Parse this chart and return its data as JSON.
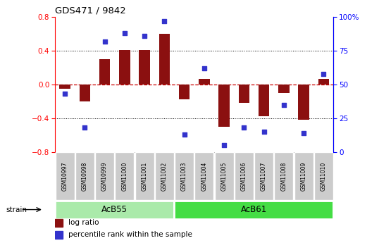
{
  "title": "GDS471 / 9842",
  "samples": [
    "GSM10997",
    "GSM10998",
    "GSM10999",
    "GSM11000",
    "GSM11001",
    "GSM11002",
    "GSM11003",
    "GSM11004",
    "GSM11005",
    "GSM11006",
    "GSM11007",
    "GSM11008",
    "GSM11009",
    "GSM11010"
  ],
  "log_ratio": [
    -0.05,
    -0.2,
    0.3,
    0.41,
    0.41,
    0.6,
    -0.18,
    0.07,
    -0.5,
    -0.22,
    -0.38,
    -0.1,
    -0.42,
    0.07
  ],
  "pct_rank": [
    43,
    18,
    82,
    88,
    86,
    97,
    13,
    62,
    5,
    18,
    15,
    35,
    14,
    58
  ],
  "ylim_left": [
    -0.8,
    0.8
  ],
  "ylim_right": [
    0,
    100
  ],
  "yticks_left": [
    -0.8,
    -0.4,
    0.0,
    0.4,
    0.8
  ],
  "yticks_right": [
    0,
    25,
    50,
    75,
    100
  ],
  "ytick_labels_right": [
    "0",
    "25",
    "50",
    "75",
    "100%"
  ],
  "hlines": [
    0.4,
    -0.4
  ],
  "bar_color": "#8B1010",
  "dot_color": "#3333CC",
  "zero_line_color": "#CC0000",
  "strain_groups": [
    {
      "label": "AcB55",
      "start": 0,
      "end": 6,
      "color": "#AAEAAA"
    },
    {
      "label": "AcB61",
      "start": 6,
      "end": 14,
      "color": "#44DD44"
    }
  ],
  "legend_items": [
    {
      "label": "log ratio",
      "color": "#8B1010"
    },
    {
      "label": "percentile rank within the sample",
      "color": "#3333CC"
    }
  ],
  "bg_color": "#FFFFFF",
  "plot_bg": "#FFFFFF",
  "strain_label": "strain",
  "figsize": [
    5.38,
    3.45
  ],
  "dpi": 100
}
